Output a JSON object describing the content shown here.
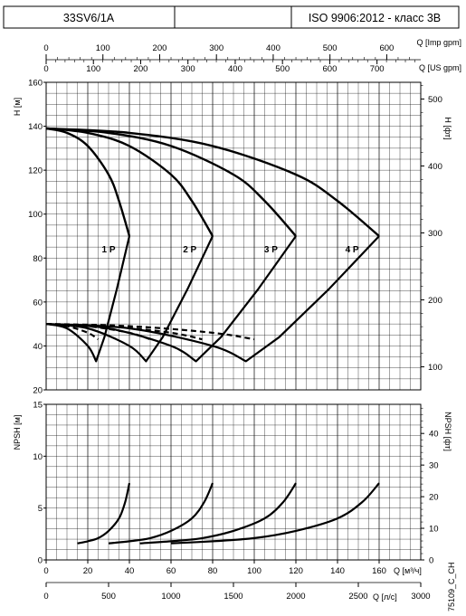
{
  "header": {
    "model": "33SV6/1A",
    "middle": "",
    "standard": "ISO 9906:2012 - класс 3В"
  },
  "axes": {
    "imp_gpm_label": "Q [Imp gpm]",
    "imp_gpm_ticks": [
      "0",
      "100",
      "200",
      "300",
      "400",
      "500",
      "600"
    ],
    "us_gpm_label": "Q [US gpm]",
    "us_gpm_ticks": [
      "0",
      "100",
      "200",
      "300",
      "400",
      "500",
      "600",
      "700"
    ],
    "h_m_label": "H [м]",
    "h_ft_label": "H [фт]",
    "h_ft_ticks": [
      "100",
      "200",
      "300",
      "400",
      "500"
    ],
    "npsh_m_label": "NPSH [м]",
    "npsh_ft_label": "NPSH [фт]",
    "npsh_ft_ticks": [
      "0",
      "10",
      "20",
      "30",
      "40"
    ],
    "q_m3h_label": "Q [м³/ч]",
    "q_ls_label": "Q [л/с]",
    "q_ls_ticks": [
      "0",
      "500",
      "1000",
      "1500",
      "2000",
      "2500",
      "3000"
    ]
  },
  "footer_code": "75109_C_CH",
  "chart_data": [
    {
      "type": "line",
      "title": "",
      "xlabel": "Q [м³/ч]",
      "ylabel": "H [м]",
      "xlim": [
        0,
        180
      ],
      "ylim": [
        20,
        160
      ],
      "x_ticks": [
        0,
        20,
        40,
        60,
        80,
        100,
        120,
        140,
        160
      ],
      "y_ticks": [
        20,
        40,
        60,
        80,
        100,
        120,
        140,
        160
      ],
      "grid": true,
      "series": [
        {
          "name": "1 P",
          "type": "head",
          "x": [
            0,
            10,
            20,
            30,
            35,
            40
          ],
          "y": [
            139,
            137,
            131,
            118,
            106,
            90
          ]
        },
        {
          "name": "2 P",
          "type": "head",
          "x": [
            0,
            20,
            40,
            60,
            70,
            80
          ],
          "y": [
            139,
            137,
            131,
            118,
            106,
            90
          ]
        },
        {
          "name": "3 P",
          "type": "head",
          "x": [
            0,
            30,
            60,
            90,
            105,
            120
          ],
          "y": [
            139,
            137,
            131,
            118,
            106,
            90
          ]
        },
        {
          "name": "4 P",
          "type": "head",
          "x": [
            0,
            40,
            80,
            120,
            140,
            160
          ],
          "y": [
            139,
            137,
            131,
            118,
            106,
            90
          ]
        },
        {
          "name": "1 P",
          "type": "efficiency",
          "x": [
            0,
            10,
            20,
            24,
            28,
            34,
            40
          ],
          "y": [
            50,
            48,
            40,
            33,
            44,
            66,
            90
          ]
        },
        {
          "name": "2 P",
          "type": "efficiency",
          "x": [
            0,
            20,
            40,
            48,
            56,
            68,
            80
          ],
          "y": [
            50,
            48,
            40,
            33,
            44,
            66,
            90
          ]
        },
        {
          "name": "3 P",
          "type": "efficiency",
          "x": [
            0,
            30,
            60,
            72,
            84,
            102,
            120
          ],
          "y": [
            50,
            48,
            40,
            33,
            44,
            66,
            90
          ]
        },
        {
          "name": "4 P",
          "type": "efficiency",
          "x": [
            0,
            40,
            80,
            96,
            112,
            136,
            160
          ],
          "y": [
            50,
            48,
            40,
            33,
            44,
            66,
            90
          ]
        },
        {
          "name": "1 P",
          "type": "dashed",
          "x": [
            0,
            10,
            20,
            25
          ],
          "y": [
            50,
            49,
            46,
            43
          ]
        },
        {
          "name": "2 P",
          "type": "dashed",
          "x": [
            0,
            20,
            40,
            50
          ],
          "y": [
            50,
            49,
            46,
            43
          ]
        },
        {
          "name": "3 P",
          "type": "dashed",
          "x": [
            0,
            30,
            60,
            75
          ],
          "y": [
            50,
            49,
            46,
            43
          ]
        },
        {
          "name": "4 P",
          "type": "dashed",
          "x": [
            0,
            40,
            80,
            100
          ],
          "y": [
            50,
            49,
            46,
            43
          ]
        }
      ],
      "curve_labels": [
        {
          "text": "1 P",
          "x": 30,
          "y": 84
        },
        {
          "text": "2 P",
          "x": 69,
          "y": 84
        },
        {
          "text": "3 P",
          "x": 108,
          "y": 84
        },
        {
          "text": "4 P",
          "x": 147,
          "y": 84
        }
      ]
    },
    {
      "type": "line",
      "title": "",
      "xlabel": "Q [м³/ч]",
      "ylabel": "NPSH [м]",
      "xlim": [
        0,
        180
      ],
      "ylim": [
        0,
        15
      ],
      "x_ticks": [
        0,
        20,
        40,
        60,
        80,
        100,
        120,
        140,
        160
      ],
      "y_ticks": [
        0,
        5,
        10,
        15
      ],
      "grid": true,
      "series": [
        {
          "name": "1 P",
          "x": [
            15,
            20,
            25,
            30,
            35,
            38,
            40
          ],
          "y": [
            1.6,
            1.8,
            2.1,
            2.8,
            4.0,
            5.6,
            7.4
          ]
        },
        {
          "name": "2 P",
          "x": [
            30,
            40,
            50,
            60,
            70,
            76,
            80
          ],
          "y": [
            1.6,
            1.8,
            2.1,
            2.8,
            4.0,
            5.6,
            7.4
          ]
        },
        {
          "name": "3 P",
          "x": [
            45,
            60,
            75,
            90,
            105,
            114,
            120
          ],
          "y": [
            1.6,
            1.8,
            2.1,
            2.8,
            4.0,
            5.6,
            7.4
          ]
        },
        {
          "name": "4 P",
          "x": [
            60,
            80,
            100,
            120,
            140,
            152,
            160
          ],
          "y": [
            1.6,
            1.8,
            2.1,
            2.8,
            4.0,
            5.6,
            7.4
          ]
        }
      ]
    }
  ]
}
